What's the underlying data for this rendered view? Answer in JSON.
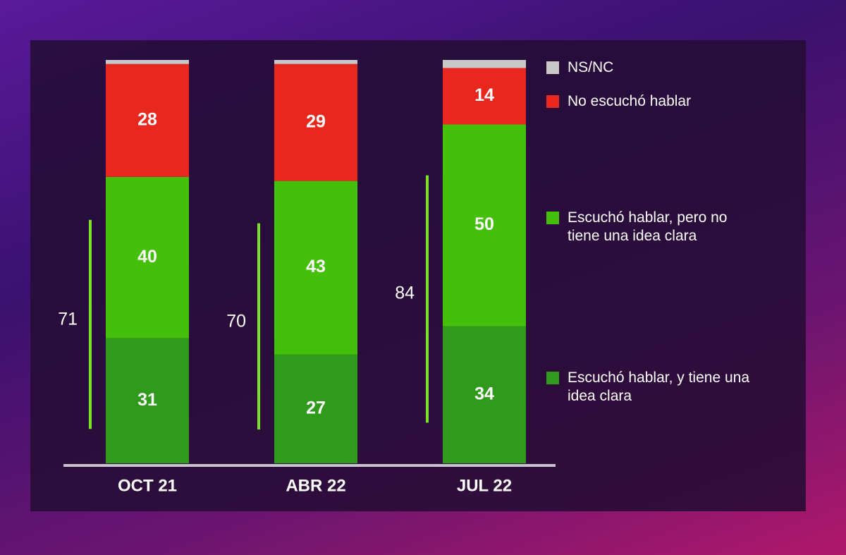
{
  "chart_data": {
    "type": "stacked-bar",
    "categories": [
      "OCT 21",
      "ABR 22",
      "JUL 22"
    ],
    "series": [
      {
        "name": "Escuchó hablar, y tiene una idea clara",
        "color": "#2f9a1c",
        "values": [
          31,
          27,
          34
        ]
      },
      {
        "name": "Escuchó hablar, pero no tiene una idea clara",
        "color": "#44c00a",
        "values": [
          40,
          43,
          50
        ]
      },
      {
        "name": "No escuchó hablar",
        "color": "#e8281e",
        "values": [
          28,
          29,
          14
        ]
      },
      {
        "name": "NS/NC",
        "color": "#c8c8c8",
        "values": [
          1,
          1,
          2
        ]
      }
    ],
    "value_labelled_series": [
      0,
      1,
      2
    ],
    "bracket_values": [
      71,
      70,
      84
    ],
    "ylim": [
      0,
      100
    ]
  }
}
